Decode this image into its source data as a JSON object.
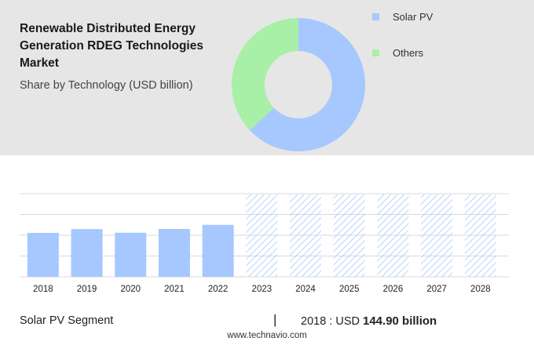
{
  "header": {
    "title": "Renewable Distributed Energy Generation RDEG Technologies Market",
    "subtitle": "Share by Technology (USD billion)"
  },
  "legend": {
    "items": [
      {
        "label": "Solar PV",
        "color": "#a6c8ff"
      },
      {
        "label": "Others",
        "color": "#a8f0a8"
      }
    ]
  },
  "colors": {
    "bar": "#a6c8ff",
    "forecast_hatch": "#a6c8ff",
    "gridline": "#d9d9d9",
    "panel": "#e6e6e6"
  },
  "chart_data": [
    {
      "type": "pie",
      "variant": "donut",
      "slices": [
        {
          "label": "Solar PV",
          "share": 63
        },
        {
          "label": "Others",
          "share": 37
        }
      ]
    },
    {
      "type": "bar",
      "categories": [
        "2018",
        "2019",
        "2020",
        "2021",
        "2022",
        "2023",
        "2024",
        "2025",
        "2026",
        "2027",
        "2028"
      ],
      "values": [
        144.9,
        157.5,
        145.5,
        158.0,
        171.5,
        null,
        null,
        null,
        null,
        null,
        null
      ],
      "forecast_categories": [
        "2023",
        "2024",
        "2025",
        "2026",
        "2027",
        "2028"
      ],
      "ylim": [
        0,
        200
      ],
      "grid": true,
      "value_axis_labels": false
    }
  ],
  "footer": {
    "segment": "Solar PV Segment",
    "divider": "|",
    "value_prefix": "2018 : USD",
    "value_bold": "144.90 billion",
    "source": "www.technavio.com"
  }
}
